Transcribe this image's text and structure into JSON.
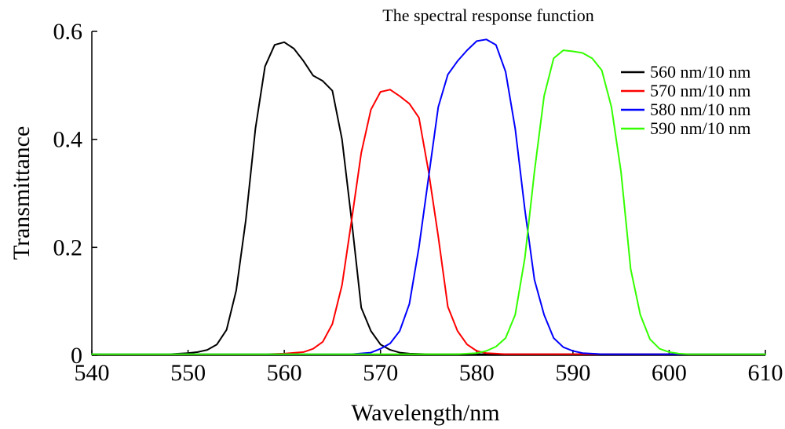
{
  "chart_data": {
    "type": "line",
    "title": "The spectral response function",
    "xlabel": "Wavelength/nm",
    "ylabel": "Transmittance",
    "xlim": [
      540,
      610
    ],
    "ylim": [
      0,
      0.6
    ],
    "xticks": [
      540,
      550,
      560,
      570,
      580,
      590,
      600,
      610
    ],
    "yticks": [
      0,
      0.2,
      0.4,
      0.6
    ],
    "ytick_labels": [
      "0",
      "0.2",
      "0.4",
      "0.6"
    ],
    "legend_position": "top-right",
    "grid": false,
    "series": [
      {
        "name": "560 nm/10 nm",
        "color": "#000000",
        "x": [
          540,
          548,
          550,
          551,
          552,
          553,
          554,
          555,
          556,
          557,
          558,
          559,
          560,
          561,
          562,
          563,
          564,
          565,
          566,
          567,
          568,
          569,
          570,
          571,
          572,
          573,
          575,
          578,
          610
        ],
        "y": [
          0.002,
          0.002,
          0.004,
          0.006,
          0.01,
          0.02,
          0.047,
          0.12,
          0.25,
          0.42,
          0.535,
          0.575,
          0.58,
          0.568,
          0.545,
          0.518,
          0.508,
          0.49,
          0.4,
          0.25,
          0.088,
          0.045,
          0.02,
          0.01,
          0.005,
          0.003,
          0.002,
          0.002,
          0.002
        ]
      },
      {
        "name": "570 nm/10 nm",
        "color": "#ff0000",
        "x": [
          540,
          558,
          560,
          562,
          563,
          564,
          565,
          566,
          567,
          568,
          569,
          570,
          571,
          572,
          573,
          574,
          575,
          576,
          577,
          578,
          579,
          580,
          581,
          582,
          583,
          585,
          610
        ],
        "y": [
          0.002,
          0.002,
          0.003,
          0.006,
          0.012,
          0.025,
          0.058,
          0.13,
          0.25,
          0.375,
          0.455,
          0.488,
          0.492,
          0.48,
          0.466,
          0.44,
          0.34,
          0.22,
          0.09,
          0.045,
          0.02,
          0.008,
          0.004,
          0.003,
          0.002,
          0.002,
          0.002
        ]
      },
      {
        "name": "580 nm/10 nm",
        "color": "#0000ff",
        "x": [
          540,
          567,
          569,
          570,
          571,
          572,
          573,
          574,
          575,
          576,
          577,
          578,
          579,
          580,
          581,
          582,
          583,
          584,
          585,
          586,
          587,
          588,
          589,
          590,
          591,
          593,
          610
        ],
        "y": [
          0.002,
          0.002,
          0.005,
          0.012,
          0.022,
          0.045,
          0.095,
          0.2,
          0.33,
          0.46,
          0.52,
          0.545,
          0.565,
          0.582,
          0.585,
          0.575,
          0.525,
          0.42,
          0.27,
          0.14,
          0.075,
          0.032,
          0.015,
          0.008,
          0.004,
          0.002,
          0.002
        ]
      },
      {
        "name": "590 nm/10 nm",
        "color": "#33ff00",
        "x": [
          540,
          578,
          580,
          581,
          582,
          583,
          584,
          585,
          586,
          587,
          588,
          589,
          590,
          591,
          592,
          593,
          594,
          595,
          596,
          597,
          598,
          599,
          600,
          601,
          602,
          604,
          610
        ],
        "y": [
          0.002,
          0.002,
          0.004,
          0.008,
          0.016,
          0.032,
          0.075,
          0.18,
          0.34,
          0.48,
          0.55,
          0.565,
          0.563,
          0.56,
          0.55,
          0.528,
          0.46,
          0.34,
          0.16,
          0.075,
          0.03,
          0.012,
          0.006,
          0.003,
          0.002,
          0.002,
          0.002
        ]
      }
    ]
  }
}
